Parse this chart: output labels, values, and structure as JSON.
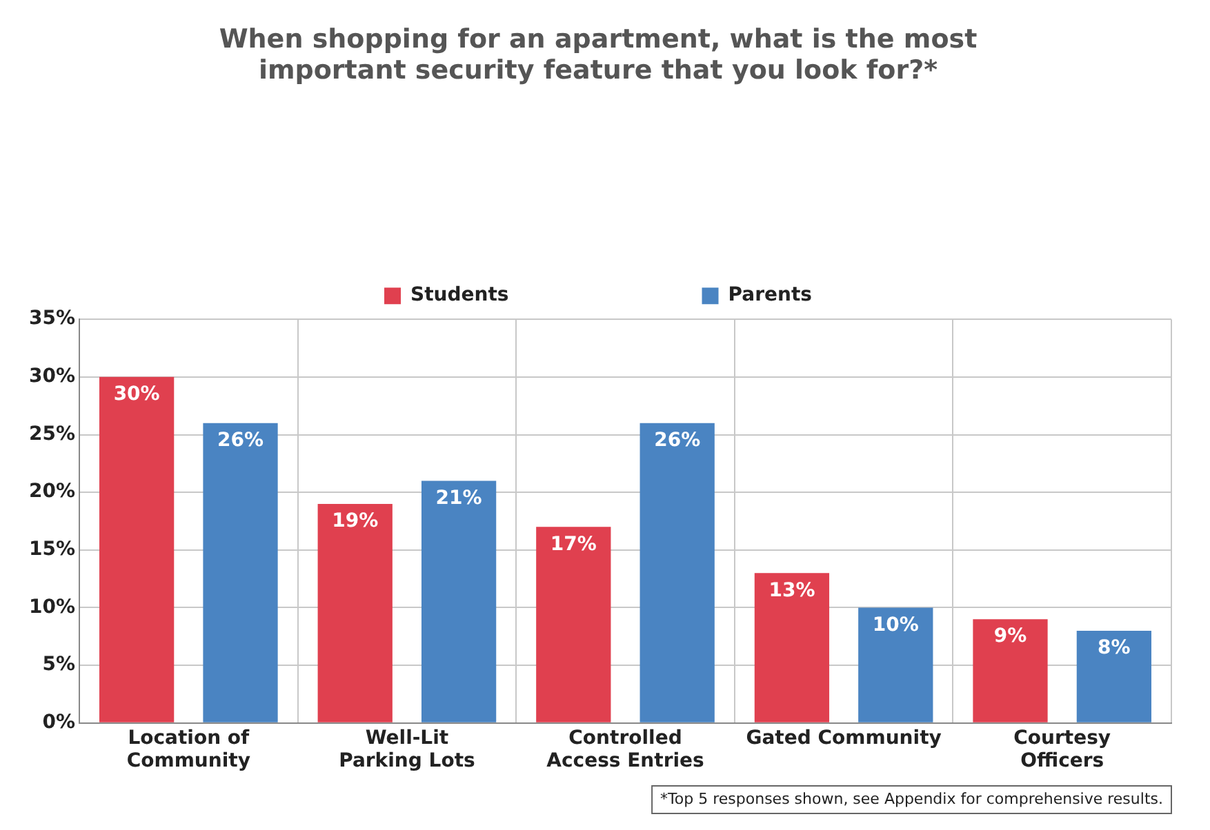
{
  "chart_data": {
    "type": "bar",
    "title": "When shopping for an apartment, what is the most important security feature that you look for?*",
    "categories": [
      "Location of Community",
      "Well-Lit Parking Lots",
      "Controlled Access Entries",
      "Gated Community",
      "Courtesy Officers"
    ],
    "series": [
      {
        "name": "Students",
        "color": "#e0404f",
        "values": [
          30,
          19,
          17,
          13,
          9
        ],
        "value_labels": [
          "30%",
          "19%",
          "17%",
          "13%",
          "9%"
        ]
      },
      {
        "name": "Parents",
        "color": "#4a84c2",
        "values": [
          26,
          21,
          26,
          10,
          8
        ],
        "value_labels": [
          "26%",
          "21%",
          "26%",
          "10%",
          "8%"
        ]
      }
    ],
    "ylim": [
      0,
      35
    ],
    "yticks": [
      {
        "value": 0,
        "label": "0%"
      },
      {
        "value": 5,
        "label": "5%"
      },
      {
        "value": 10,
        "label": "10%"
      },
      {
        "value": 15,
        "label": "15%"
      },
      {
        "value": 20,
        "label": "20%"
      },
      {
        "value": 25,
        "label": "25%"
      },
      {
        "value": 30,
        "label": "30%"
      },
      {
        "value": 35,
        "label": "35%"
      }
    ],
    "grid": true,
    "legend": "top",
    "annotations": [
      "*Top 5 responses shown, see Appendix for comprehensive results."
    ]
  }
}
